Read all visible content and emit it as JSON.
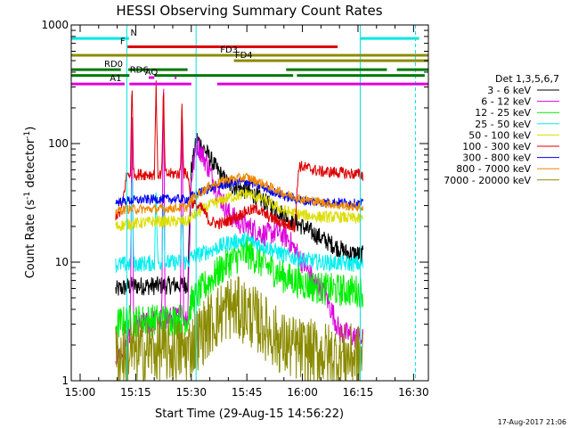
{
  "chart_data": {
    "type": "line",
    "title": "HESSI Observing Summary Count Rates",
    "xlabel": "Start Time (29-Aug-15 14:56:22)",
    "ylabel": "Count Rate (s",
    "ylabel_sup": "-1",
    "ylabel_mid": " detector",
    "ylabel_end": ")",
    "x_unit": "minutes of day (UT)",
    "xlim": [
      897.6,
      994.0
    ],
    "x_ticks": [
      {
        "value": 900,
        "label": "15:00"
      },
      {
        "value": 915,
        "label": "15:15"
      },
      {
        "value": 930,
        "label": "15:30"
      },
      {
        "value": 945,
        "label": "15:45"
      },
      {
        "value": 960,
        "label": "16:00"
      },
      {
        "value": 975,
        "label": "16:15"
      },
      {
        "value": 990,
        "label": "16:30"
      }
    ],
    "y_scale": "log",
    "ylim": [
      1,
      1000
    ],
    "y_ticks": [
      {
        "value": 1,
        "label": "1"
      },
      {
        "value": 10,
        "label": "10"
      },
      {
        "value": 100,
        "label": "100"
      },
      {
        "value": 1000,
        "label": "1000"
      }
    ],
    "legend_title": "Det 1,3,5,6,7",
    "legend_position": "right",
    "timestamp": "17-Aug-2017 21:06",
    "vertical_lines": [
      {
        "x": 912.6,
        "color": "#00e5e5",
        "style": "solid"
      },
      {
        "x": 931.3,
        "color": "#00e5e5",
        "style": "solid"
      },
      {
        "x": 975.6,
        "color": "#00e5e5",
        "style": "solid"
      },
      {
        "x": 990.5,
        "color": "#00e5e5",
        "style": "dashed"
      }
    ],
    "flags": [
      {
        "label": "N",
        "color": "#00e5e5",
        "y": 770,
        "label_x": 913.6,
        "segments": [
          [
            897.6,
            912.6
          ],
          [
            912.6,
            913.2
          ],
          [
            975.6,
            991.5
          ]
        ]
      },
      {
        "label": "F",
        "color": "#dd0000",
        "y": 655,
        "label_x": 910.8,
        "segments": [
          [
            912.8,
            969.5
          ]
        ]
      },
      {
        "label": "FD3",
        "color": "#8b8b00",
        "y": 555,
        "label_x": 937.8,
        "segments": [
          [
            897.6,
            994.0
          ]
        ]
      },
      {
        "label": "FD4",
        "color": "#8b8b00",
        "y": 500,
        "label_x": 941.8,
        "segments": [
          [
            941.5,
            994.0
          ]
        ]
      },
      {
        "label": "RD0",
        "color": "#007700",
        "y": 420,
        "label_x": 906.5,
        "segments": [
          [
            897.6,
            911.0
          ],
          [
            913.0,
            929.0
          ],
          [
            955.6,
            982.8
          ],
          [
            985.5,
            994.0
          ]
        ]
      },
      {
        "label": "RD6",
        "color": "#007700",
        "y": 375,
        "label_x": 913.4,
        "segments": [
          [
            897.6,
            913.3
          ],
          [
            920.0,
            957.5
          ],
          [
            958.5,
            993.0
          ]
        ]
      },
      {
        "label": "AQ",
        "color": "#dd00dd",
        "y": 360,
        "label_x": 917.5,
        "segments": [
          [
            918.5,
            920.0
          ],
          [
            925.5,
            926.0
          ]
        ]
      },
      {
        "label": "A1",
        "color": "#dd00dd",
        "y": 318,
        "label_x": 908.0,
        "segments": [
          [
            897.6,
            912.0
          ],
          [
            913.3,
            930.0
          ],
          [
            937.0,
            994.0
          ]
        ]
      }
    ],
    "series": [
      {
        "name": "3 - 6 keV",
        "color": "#000000",
        "start": 909.6,
        "end": 976.4,
        "points": [
          [
            909.6,
            5.8
          ],
          [
            912.6,
            6.2
          ],
          [
            914.0,
            6.3
          ],
          [
            920.0,
            6.3
          ],
          [
            925.0,
            6.4
          ],
          [
            929.0,
            6.5
          ],
          [
            930.0,
            60
          ],
          [
            931.5,
            110
          ],
          [
            934.0,
            85
          ],
          [
            937.0,
            60
          ],
          [
            940.0,
            45
          ],
          [
            945.0,
            40
          ],
          [
            950.0,
            32
          ],
          [
            955.0,
            25
          ],
          [
            960.0,
            20
          ],
          [
            965.0,
            16
          ],
          [
            970.0,
            13
          ],
          [
            972.0,
            12
          ],
          [
            976.4,
            11.5
          ]
        ],
        "noise": 0.08,
        "spikes": []
      },
      {
        "name": "6 - 12 keV",
        "color": "#dd00dd",
        "start": 909.6,
        "end": 976.4,
        "points": [
          [
            909.6,
            1.6
          ],
          [
            912.0,
            1.8
          ],
          [
            914.0,
            2.8
          ],
          [
            920.0,
            3.2
          ],
          [
            925.0,
            3.4
          ],
          [
            929.0,
            3.5
          ],
          [
            930.0,
            50
          ],
          [
            931.5,
            100
          ],
          [
            934.0,
            70
          ],
          [
            937.0,
            40
          ],
          [
            940.0,
            26
          ],
          [
            942.5,
            22
          ],
          [
            945.0,
            20
          ],
          [
            950.0,
            17
          ],
          [
            953.0,
            18
          ],
          [
            956.0,
            16
          ],
          [
            960.0,
            10
          ],
          [
            963.0,
            7
          ],
          [
            966.0,
            5.5
          ],
          [
            968.5,
            3.5
          ],
          [
            970.0,
            2.6
          ],
          [
            976.4,
            2.2
          ]
        ],
        "noise": 0.1,
        "spikes": [
          {
            "x": 914.0,
            "v": 200
          },
          {
            "x": 922.5,
            "v": 450
          },
          {
            "x": 927.5,
            "v": 280
          }
        ]
      },
      {
        "name": "12 - 25 keV",
        "color": "#00ee00",
        "start": 909.6,
        "end": 976.4,
        "points": [
          [
            909.6,
            3.0
          ],
          [
            913.0,
            3.2
          ],
          [
            929.0,
            3.3
          ],
          [
            930.0,
            4.6
          ],
          [
            935.0,
            7.0
          ],
          [
            940.0,
            10.0
          ],
          [
            945.0,
            12.0
          ],
          [
            950.0,
            9.5
          ],
          [
            955.0,
            7.5
          ],
          [
            960.0,
            6.6
          ],
          [
            965.0,
            6.0
          ],
          [
            970.0,
            5.8
          ],
          [
            976.4,
            5.7
          ]
        ],
        "noise": 0.14,
        "spikes": []
      },
      {
        "name": "25 - 50 keV",
        "color": "#00eeee",
        "start": 909.6,
        "end": 976.4,
        "points": [
          [
            909.6,
            9.5
          ],
          [
            913.0,
            9.6
          ],
          [
            920.0,
            9.8
          ],
          [
            929.0,
            10.0
          ],
          [
            930.0,
            11.0
          ],
          [
            935.0,
            12.5
          ],
          [
            940.0,
            14.5
          ],
          [
            945.0,
            15.5
          ],
          [
            950.0,
            13.5
          ],
          [
            955.0,
            11.5
          ],
          [
            960.0,
            10.5
          ],
          [
            965.0,
            10.0
          ],
          [
            970.0,
            9.8
          ],
          [
            976.4,
            9.6
          ]
        ],
        "noise": 0.07,
        "spikes": [
          {
            "x": 914.0,
            "v": 55
          },
          {
            "x": 920.5,
            "v": 45
          },
          {
            "x": 922.5,
            "v": 35
          },
          {
            "x": 927.5,
            "v": 28
          }
        ]
      },
      {
        "name": "50 - 100 keV",
        "color": "#dddd00",
        "start": 909.6,
        "end": 976.4,
        "points": [
          [
            909.6,
            20
          ],
          [
            913.0,
            21
          ],
          [
            920.0,
            22
          ],
          [
            929.0,
            22
          ],
          [
            930.0,
            24
          ],
          [
            935.0,
            30
          ],
          [
            940.0,
            35
          ],
          [
            945.0,
            38
          ],
          [
            950.0,
            33
          ],
          [
            955.0,
            27
          ],
          [
            960.0,
            25
          ],
          [
            965.0,
            24
          ],
          [
            970.0,
            24
          ],
          [
            976.4,
            23
          ]
        ],
        "noise": 0.05,
        "spikes": []
      },
      {
        "name": "100 - 300 keV",
        "color": "#dd0000",
        "start": 909.6,
        "end": 976.4,
        "points": [
          [
            909.6,
            25
          ],
          [
            911.0,
            26
          ],
          [
            912.6,
            55
          ],
          [
            920.0,
            55
          ],
          [
            929.0,
            56
          ],
          [
            930.0,
            32
          ],
          [
            933.0,
            28
          ],
          [
            935.0,
            22
          ],
          [
            938.0,
            21
          ],
          [
            942.0,
            24
          ],
          [
            945.0,
            27
          ],
          [
            948.0,
            28
          ],
          [
            950.0,
            25
          ],
          [
            955.0,
            21
          ],
          [
            958.0,
            20
          ],
          [
            959.0,
            65
          ],
          [
            965.0,
            58
          ],
          [
            970.0,
            57
          ],
          [
            975.0,
            55
          ],
          [
            976.4,
            54
          ]
        ],
        "noise": 0.05,
        "spikes": [
          {
            "x": 914.0,
            "v": 320
          },
          {
            "x": 920.5,
            "v": 330
          },
          {
            "x": 922.5,
            "v": 300
          },
          {
            "x": 927.5,
            "v": 230
          }
        ]
      },
      {
        "name": "300 - 800 keV",
        "color": "#0000ee",
        "start": 909.6,
        "end": 976.4,
        "points": [
          [
            909.6,
            32
          ],
          [
            913.0,
            33
          ],
          [
            920.0,
            34
          ],
          [
            929.0,
            34
          ],
          [
            930.0,
            36
          ],
          [
            935.0,
            42
          ],
          [
            940.0,
            46
          ],
          [
            945.0,
            48
          ],
          [
            950.0,
            42
          ],
          [
            955.0,
            36
          ],
          [
            960.0,
            33
          ],
          [
            965.0,
            32
          ],
          [
            970.0,
            32
          ],
          [
            976.4,
            31
          ]
        ],
        "noise": 0.04,
        "spikes": []
      },
      {
        "name": "800 - 7000 keV",
        "color": "#ee8800",
        "start": 909.6,
        "end": 976.4,
        "points": [
          [
            909.6,
            27
          ],
          [
            913.0,
            28
          ],
          [
            920.0,
            28
          ],
          [
            929.0,
            29
          ],
          [
            930.0,
            34
          ],
          [
            935.0,
            44
          ],
          [
            940.0,
            50
          ],
          [
            945.0,
            52
          ],
          [
            950.0,
            45
          ],
          [
            955.0,
            38
          ],
          [
            960.0,
            34
          ],
          [
            965.0,
            32
          ],
          [
            970.0,
            30
          ],
          [
            976.4,
            29
          ]
        ],
        "noise": 0.04,
        "spikes": []
      },
      {
        "name": "7000 - 20000 keV",
        "color": "#8b8b00",
        "start": 909.6,
        "end": 976.4,
        "points": [
          [
            909.6,
            1.6
          ],
          [
            913.0,
            1.7
          ],
          [
            920.0,
            1.8
          ],
          [
            929.0,
            1.8
          ],
          [
            930.0,
            2.0
          ],
          [
            935.0,
            3.0
          ],
          [
            940.0,
            4.2
          ],
          [
            945.0,
            3.8
          ],
          [
            950.0,
            2.8
          ],
          [
            955.0,
            2.0
          ],
          [
            960.0,
            1.8
          ],
          [
            965.0,
            1.7
          ],
          [
            970.0,
            1.6
          ],
          [
            976.4,
            1.6
          ]
        ],
        "noise": 0.28,
        "spikes": []
      }
    ]
  }
}
